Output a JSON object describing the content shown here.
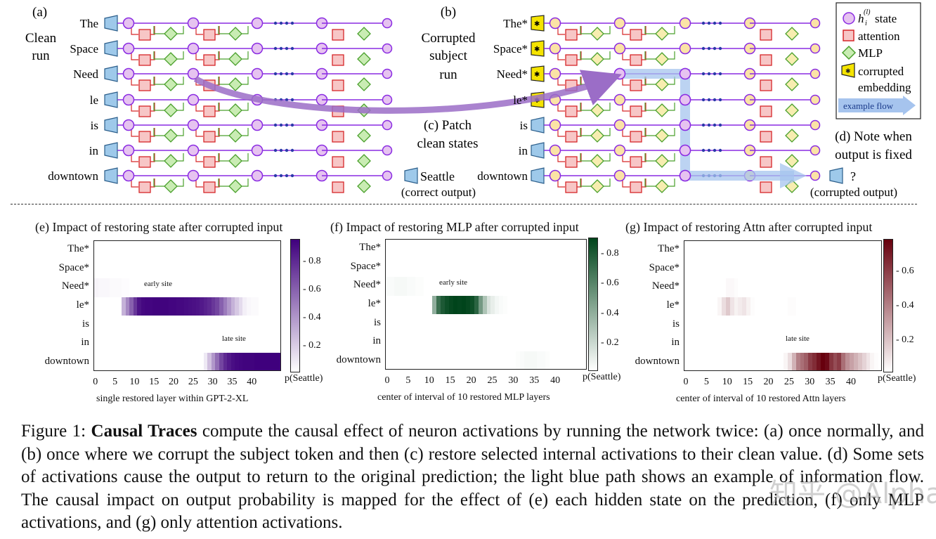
{
  "diagram": {
    "panel_a": {
      "letter": "(a)",
      "label_line1": "Clean",
      "label_line2": "run"
    },
    "panel_b": {
      "letter": "(b)",
      "label_line1": "Corrupted",
      "label_line2": "subject",
      "label_line3": "run"
    },
    "panel_c": {
      "label_line1": "(c) Patch",
      "label_line2": "clean states"
    },
    "panel_d": {
      "label_line1": "(d) Note when",
      "label_line2": "output is fixed"
    },
    "clean_tokens": [
      "The",
      "Space",
      "Need",
      "le",
      "is",
      "in",
      "downtown"
    ],
    "corrupt_tokens": [
      "The*",
      "Space*",
      "Need*",
      "le*",
      "is",
      "in",
      "downtown"
    ],
    "clean_output": "Seattle",
    "clean_output_note": "(correct output)",
    "corrupt_output": "?",
    "corrupt_output_note": "(corrupted output)",
    "legend": {
      "state_label": "state",
      "state_symbol": "h",
      "state_sub": "i",
      "state_sup": "(l)",
      "attention_label": "attention",
      "mlp_label": "MLP",
      "corrupted_label_line1": "corrupted",
      "corrupted_label_line2": "embedding",
      "flow_label": "example flow"
    },
    "colors": {
      "state_clean": "#e6c3f0",
      "state_clean_stroke": "#8a2be2",
      "state_corrupt": "#fbe3a6",
      "attention_fill": "#f7c6c6",
      "attention_stroke": "#d62728",
      "mlp_fill": "#c9ecb3",
      "mlp_stroke": "#4aa02c",
      "token_fill": "#9ec9ea",
      "corrupt_token_fill": "#f5e400",
      "flow": "#a6c4ee",
      "patch_arrow": "#9b6dc7"
    }
  },
  "charts": {
    "e": {
      "title": "(e) Impact of restoring state after corrupted input",
      "ylabels": [
        "The*",
        "Space*",
        "Need*",
        "le*",
        "is",
        "in",
        "downtown"
      ],
      "xticks": [
        "0",
        "5",
        "10",
        "15",
        "20",
        "25",
        "30",
        "35",
        "40"
      ],
      "xlabel": "single restored layer within GPT-2-XL",
      "cbar_title": "p(Seattle)",
      "cbar_ticks": [
        "0.8",
        "0.6",
        "0.4",
        "0.2"
      ],
      "annot_early": "early site",
      "annot_late": "late site"
    },
    "f": {
      "title": "(f) Impact of restoring MLP after corrupted input",
      "ylabels": [
        "The*",
        "Space*",
        "Need*",
        "le*",
        "is",
        "in",
        "downtown"
      ],
      "xticks": [
        "0",
        "5",
        "10",
        "15",
        "20",
        "25",
        "30",
        "35",
        "40"
      ],
      "xlabel": "center of interval of 10 restored MLP layers",
      "cbar_title": "p(Seattle)",
      "cbar_ticks": [
        "0.8",
        "0.6",
        "0.4",
        "0.2"
      ],
      "annot_early": "early site"
    },
    "g": {
      "title": "(g) Impact of restoring Attn after corrupted input",
      "ylabels": [
        "The*",
        "Space*",
        "Need*",
        "le*",
        "is",
        "in",
        "downtown"
      ],
      "xticks": [
        "0",
        "5",
        "10",
        "15",
        "20",
        "25",
        "30",
        "35",
        "40"
      ],
      "xlabel": "center of interval of 10 restored Attn layers",
      "cbar_title": "p(Seattle)",
      "cbar_ticks": [
        "0.6",
        "0.4",
        "0.2"
      ],
      "annot_late": "late site"
    }
  },
  "chart_data": [
    {
      "type": "heatmap",
      "title": "(e) Impact of restoring state after corrupted input",
      "xlabel": "single restored layer within GPT-2-XL",
      "ylabels": [
        "The*",
        "Space*",
        "Need*",
        "le*",
        "is",
        "in",
        "downtown"
      ],
      "xlim": [
        0,
        47
      ],
      "colorbar_label": "p(Seattle)",
      "colorbar_range": [
        0.02,
        0.95
      ],
      "color": "#3f007d",
      "rows": {
        "Need*": [
          0.06,
          0.05,
          0.05,
          0.05,
          0.04,
          0.04,
          0.04,
          0.03,
          0.03,
          0.02,
          0.02,
          0.02,
          0.02,
          0.02,
          0.02,
          0.02,
          0.02,
          0.02,
          0.02,
          0.02,
          0.02,
          0.02,
          0.02,
          0.02,
          0.02,
          0.02,
          0.02,
          0.02,
          0.02,
          0.02,
          0.02,
          0.02,
          0.02,
          0.02,
          0.02,
          0.02,
          0.02,
          0.02,
          0.02,
          0.02,
          0.02,
          0.02,
          0.02,
          0.02,
          0.02,
          0.02,
          0.02,
          0.02
        ],
        "le*": [
          0.02,
          0.02,
          0.02,
          0.02,
          0.02,
          0.02,
          0.02,
          0.3,
          0.45,
          0.6,
          0.75,
          0.88,
          0.92,
          0.93,
          0.93,
          0.94,
          0.94,
          0.94,
          0.94,
          0.93,
          0.93,
          0.92,
          0.92,
          0.91,
          0.9,
          0.89,
          0.88,
          0.86,
          0.83,
          0.8,
          0.75,
          0.7,
          0.6,
          0.5,
          0.4,
          0.3,
          0.22,
          0.15,
          0.08,
          0.05,
          0.04,
          0.04,
          0.02,
          0.02,
          0.02,
          0.02,
          0.02,
          0.02
        ],
        "downtown": [
          0.02,
          0.02,
          0.02,
          0.02,
          0.02,
          0.02,
          0.02,
          0.02,
          0.02,
          0.02,
          0.02,
          0.02,
          0.02,
          0.02,
          0.02,
          0.02,
          0.02,
          0.02,
          0.02,
          0.02,
          0.02,
          0.02,
          0.02,
          0.02,
          0.02,
          0.02,
          0.02,
          0.02,
          0.1,
          0.25,
          0.4,
          0.55,
          0.7,
          0.8,
          0.86,
          0.9,
          0.92,
          0.93,
          0.94,
          0.94,
          0.94,
          0.95,
          0.95,
          0.95,
          0.95,
          0.95,
          0.95,
          0.95
        ]
      }
    },
    {
      "type": "heatmap",
      "title": "(f) Impact of restoring MLP after corrupted input",
      "xlabel": "center of interval of 10 restored MLP layers",
      "ylabels": [
        "The*",
        "Space*",
        "Need*",
        "le*",
        "is",
        "in",
        "downtown"
      ],
      "xlim": [
        0,
        47
      ],
      "colorbar_label": "p(Seattle)",
      "colorbar_range": [
        0.02,
        0.9
      ],
      "color": "#00441b",
      "rows": {
        "Need*": [
          0.04,
          0.04,
          0.05,
          0.05,
          0.05,
          0.04,
          0.04,
          0.03,
          0.03,
          0.02,
          0.02,
          0.02,
          0.02,
          0.02,
          0.02,
          0.02,
          0.02,
          0.02,
          0.02,
          0.02,
          0.02,
          0.02,
          0.02,
          0.02,
          0.02,
          0.02,
          0.02,
          0.02,
          0.02,
          0.02,
          0.02,
          0.02,
          0.02,
          0.02,
          0.02,
          0.02,
          0.02,
          0.02,
          0.02,
          0.02,
          0.02,
          0.02,
          0.02,
          0.02,
          0.02,
          0.02,
          0.02,
          0.02
        ],
        "le*": [
          0.02,
          0.02,
          0.02,
          0.02,
          0.02,
          0.02,
          0.02,
          0.02,
          0.02,
          0.02,
          0.02,
          0.4,
          0.7,
          0.8,
          0.85,
          0.88,
          0.9,
          0.89,
          0.9,
          0.88,
          0.85,
          0.75,
          0.5,
          0.3,
          0.15,
          0.1,
          0.06,
          0.04,
          0.03,
          0.02,
          0.02,
          0.02,
          0.02,
          0.02,
          0.02,
          0.02,
          0.02,
          0.02,
          0.02,
          0.02,
          0.02,
          0.02,
          0.02,
          0.02,
          0.02,
          0.02,
          0.02,
          0.02
        ],
        "downtown": [
          0.02,
          0.02,
          0.02,
          0.02,
          0.02,
          0.02,
          0.02,
          0.02,
          0.02,
          0.02,
          0.02,
          0.02,
          0.02,
          0.02,
          0.02,
          0.02,
          0.02,
          0.02,
          0.02,
          0.02,
          0.02,
          0.02,
          0.02,
          0.02,
          0.02,
          0.02,
          0.02,
          0.02,
          0.02,
          0.02,
          0.02,
          0.03,
          0.04,
          0.05,
          0.05,
          0.05,
          0.04,
          0.04,
          0.03,
          0.02,
          0.02,
          0.02,
          0.02,
          0.02,
          0.02,
          0.02,
          0.02,
          0.02
        ]
      }
    },
    {
      "type": "heatmap",
      "title": "(g) Impact of restoring Attn after corrupted input",
      "xlabel": "center of interval of 10 restored Attn layers",
      "ylabels": [
        "The*",
        "Space*",
        "Need*",
        "le*",
        "is",
        "in",
        "downtown"
      ],
      "xlim": [
        0,
        47
      ],
      "colorbar_label": "p(Seattle)",
      "colorbar_range": [
        0.02,
        0.78
      ],
      "color": "#67000d",
      "rows": {
        "Need*": [
          0.02,
          0.02,
          0.02,
          0.02,
          0.02,
          0.02,
          0.02,
          0.02,
          0.02,
          0.02,
          0.04,
          0.04,
          0.03,
          0.02,
          0.02,
          0.02,
          0.02,
          0.02,
          0.02,
          0.02,
          0.02,
          0.02,
          0.02,
          0.02,
          0.02,
          0.02,
          0.02,
          0.02,
          0.02,
          0.02,
          0.02,
          0.02,
          0.02,
          0.02,
          0.02,
          0.02,
          0.02,
          0.02,
          0.02,
          0.02,
          0.02,
          0.02,
          0.02,
          0.02,
          0.02,
          0.02,
          0.02,
          0.02
        ],
        "le*": [
          0.02,
          0.02,
          0.02,
          0.02,
          0.02,
          0.02,
          0.02,
          0.02,
          0.05,
          0.12,
          0.18,
          0.1,
          0.06,
          0.08,
          0.1,
          0.06,
          0.03,
          0.02,
          0.02,
          0.02,
          0.02,
          0.02,
          0.02,
          0.02,
          0.02,
          0.03,
          0.03,
          0.02,
          0.02,
          0.02,
          0.02,
          0.02,
          0.02,
          0.02,
          0.02,
          0.02,
          0.02,
          0.02,
          0.02,
          0.02,
          0.02,
          0.02,
          0.02,
          0.02,
          0.02,
          0.02,
          0.02,
          0.02
        ],
        "downtown": [
          0.02,
          0.02,
          0.02,
          0.02,
          0.02,
          0.02,
          0.02,
          0.02,
          0.02,
          0.02,
          0.02,
          0.02,
          0.02,
          0.02,
          0.02,
          0.02,
          0.02,
          0.02,
          0.02,
          0.02,
          0.02,
          0.02,
          0.02,
          0.02,
          0.05,
          0.12,
          0.25,
          0.4,
          0.45,
          0.5,
          0.6,
          0.65,
          0.72,
          0.78,
          0.75,
          0.62,
          0.55,
          0.6,
          0.45,
          0.35,
          0.3,
          0.25,
          0.2,
          0.15,
          0.1,
          0.05,
          0.03,
          0.02
        ]
      }
    }
  ],
  "caption": {
    "figure_label": "Figure 1:",
    "bold": "Causal Traces",
    "text": "compute the causal effect of neuron activations by running the network twice: (a) once normally, and (b) once where we corrupt the subject token and then (c) restore selected internal activations to their clean value. (d) Some sets of activations cause the output to return to the original prediction; the light blue path shows an example of information flow. The causal impact on output probability is mapped for the effect of (e) each hidden state on the prediction, (f) only MLP activations, and (g) only attention activations."
  },
  "watermark": "知乎 @Alphabeta"
}
